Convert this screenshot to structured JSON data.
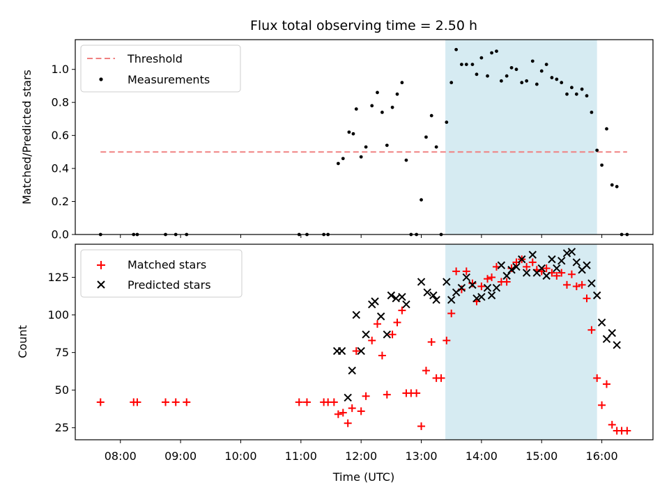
{
  "chart_data": [
    {
      "type": "scatter",
      "title": "Flux total observing time = 2.50 h",
      "xlabel": "",
      "ylabel": "Matched/Predicted stars",
      "x_unit": "hours (UTC)",
      "xlim": [
        7.25,
        16.85
      ],
      "ylim": [
        0.0,
        1.18
      ],
      "yticks": [
        0.0,
        0.2,
        0.4,
        0.6,
        0.8,
        1.0
      ],
      "ytick_labels": [
        "0.0",
        "0.2",
        "0.4",
        "0.6",
        "0.8",
        "1.0"
      ],
      "shaded_region": {
        "x_start": 13.4,
        "x_end": 15.92,
        "color": "#add8e6"
      },
      "threshold": {
        "name": "Threshold",
        "y": 0.5,
        "x_start": 7.67,
        "x_end": 16.42,
        "color": "#f08080",
        "style": "dashed"
      },
      "legend": {
        "placement": "upper-left",
        "entries": [
          "Threshold",
          "Measurements"
        ]
      },
      "series": [
        {
          "name": "Measurements",
          "color": "#000000",
          "marker": "dot",
          "x": [
            7.67,
            8.22,
            8.28,
            8.75,
            8.92,
            9.1,
            10.97,
            11.1,
            11.38,
            11.45,
            11.62,
            11.7,
            11.8,
            11.87,
            11.92,
            12.0,
            12.08,
            12.18,
            12.27,
            12.35,
            12.43,
            12.52,
            12.6,
            12.68,
            12.75,
            12.83,
            12.92,
            13.0,
            13.08,
            13.17,
            13.25,
            13.33,
            13.42,
            13.5,
            13.58,
            13.67,
            13.75,
            13.85,
            13.92,
            14.0,
            14.1,
            14.17,
            14.25,
            14.33,
            14.42,
            14.5,
            14.58,
            14.67,
            14.75,
            14.85,
            14.92,
            15.0,
            15.08,
            15.17,
            15.25,
            15.33,
            15.42,
            15.5,
            15.58,
            15.67,
            15.75,
            15.83,
            15.92,
            16.0,
            16.08,
            16.17,
            16.25,
            16.33,
            16.42
          ],
          "y": [
            0.0,
            0.0,
            0.0,
            0.0,
            0.0,
            0.0,
            0.0,
            0.0,
            0.0,
            0.0,
            0.43,
            0.46,
            0.62,
            0.61,
            0.76,
            0.47,
            0.53,
            0.78,
            0.86,
            0.74,
            0.54,
            0.77,
            0.85,
            0.92,
            0.45,
            0.0,
            0.0,
            0.21,
            0.59,
            0.72,
            0.53,
            0.0,
            0.68,
            0.92,
            1.12,
            1.03,
            1.03,
            1.03,
            0.97,
            1.07,
            0.96,
            1.1,
            1.11,
            0.93,
            0.96,
            1.01,
            1.0,
            0.92,
            0.93,
            1.05,
            0.91,
            0.99,
            1.03,
            0.95,
            0.94,
            0.92,
            0.85,
            0.89,
            0.85,
            0.88,
            0.84,
            0.74,
            0.51,
            0.42,
            0.64,
            0.3,
            0.29,
            0.0,
            0.0
          ]
        }
      ]
    },
    {
      "type": "scatter",
      "title": "",
      "xlabel": "Time (UTC)",
      "ylabel": "Count",
      "x_unit": "hours (UTC)",
      "xlim": [
        7.25,
        16.85
      ],
      "ylim": [
        17,
        147
      ],
      "yticks": [
        25,
        50,
        75,
        100,
        125
      ],
      "ytick_labels": [
        "25",
        "50",
        "75",
        "100",
        "125"
      ],
      "xticks": [
        8,
        9,
        10,
        11,
        12,
        13,
        14,
        15,
        16
      ],
      "xtick_labels": [
        "08:00",
        "09:00",
        "10:00",
        "11:00",
        "12:00",
        "13:00",
        "14:00",
        "15:00",
        "16:00"
      ],
      "shaded_region": {
        "x_start": 13.4,
        "x_end": 15.92,
        "color": "#add8e6"
      },
      "legend": {
        "placement": "upper-left",
        "entries": [
          "Matched stars",
          "Predicted stars"
        ]
      },
      "series": [
        {
          "name": "Matched stars",
          "color": "#ff0000",
          "marker": "plus",
          "x": [
            7.67,
            8.22,
            8.28,
            8.75,
            8.92,
            9.1,
            10.97,
            11.1,
            11.38,
            11.45,
            11.55,
            11.62,
            11.7,
            11.78,
            11.85,
            11.92,
            12.0,
            12.08,
            12.18,
            12.27,
            12.35,
            12.43,
            12.52,
            12.6,
            12.68,
            12.75,
            12.83,
            12.92,
            13.0,
            13.08,
            13.17,
            13.25,
            13.33,
            13.42,
            13.5,
            13.58,
            13.67,
            13.75,
            13.85,
            13.92,
            14.0,
            14.1,
            14.17,
            14.25,
            14.33,
            14.42,
            14.5,
            14.58,
            14.67,
            14.75,
            14.85,
            14.92,
            15.0,
            15.08,
            15.17,
            15.25,
            15.33,
            15.42,
            15.5,
            15.58,
            15.67,
            15.75,
            15.83,
            15.92,
            16.0,
            16.08,
            16.17,
            16.25,
            16.33,
            16.42
          ],
          "y": [
            42,
            42,
            42,
            42,
            42,
            42,
            42,
            42,
            42,
            42,
            42,
            34,
            35,
            28,
            38,
            76,
            36,
            46,
            83,
            94,
            73,
            47,
            87,
            95,
            103,
            48,
            48,
            48,
            26,
            63,
            82,
            58,
            58,
            83,
            101,
            129,
            117,
            129,
            121,
            109,
            119,
            124,
            125,
            132,
            122,
            122,
            131,
            135,
            137,
            132,
            135,
            130,
            129,
            131,
            128,
            126,
            128,
            120,
            127,
            119,
            120,
            111,
            90,
            58,
            40,
            54,
            27,
            23,
            23,
            23
          ]
        },
        {
          "name": "Predicted stars",
          "color": "#000000",
          "marker": "x",
          "x": [
            11.6,
            11.68,
            11.78,
            11.85,
            11.92,
            12.0,
            12.08,
            12.18,
            12.23,
            12.33,
            12.43,
            12.5,
            12.58,
            12.68,
            12.75,
            13.0,
            13.1,
            13.2,
            13.25,
            13.42,
            13.5,
            13.58,
            13.67,
            13.75,
            13.85,
            13.92,
            14.0,
            14.1,
            14.17,
            14.25,
            14.33,
            14.42,
            14.5,
            14.58,
            14.67,
            14.75,
            14.85,
            14.92,
            15.0,
            15.08,
            15.17,
            15.25,
            15.33,
            15.42,
            15.5,
            15.58,
            15.67,
            15.75,
            15.83,
            15.92,
            16.0,
            16.08,
            16.17,
            16.25
          ],
          "y": [
            76,
            76,
            45,
            63,
            100,
            76,
            87,
            107,
            109,
            99,
            87,
            113,
            111,
            112,
            107,
            122,
            115,
            113,
            110,
            122,
            110,
            115,
            118,
            125,
            120,
            111,
            112,
            118,
            113,
            118,
            133,
            126,
            130,
            132,
            137,
            128,
            140,
            128,
            131,
            126,
            137,
            131,
            136,
            141,
            142,
            135,
            130,
            133,
            121,
            113,
            95,
            84,
            88,
            80
          ]
        }
      ]
    }
  ]
}
